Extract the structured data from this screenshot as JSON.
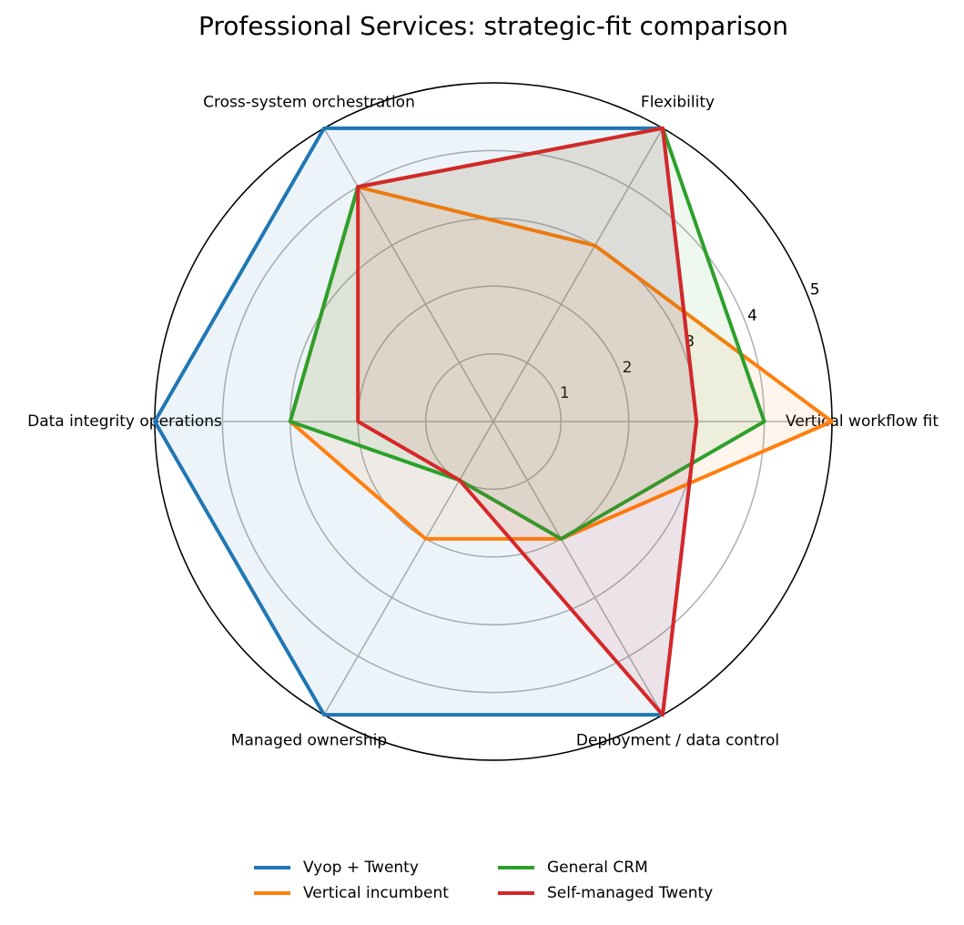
{
  "chart_data": {
    "type": "radar",
    "title": "Professional Services: strategic-fit comparison",
    "categories": [
      "Vertical workflow fit",
      "Flexibility",
      "Cross-system orchestration",
      "Data integrity operations",
      "Managed ownership",
      "Deployment / data control"
    ],
    "series": [
      {
        "name": "Vyop + Twenty",
        "color": "#1f77b4",
        "values": [
          3,
          5,
          5,
          5,
          5,
          5
        ]
      },
      {
        "name": "Vertical incumbent",
        "color": "#ff7f0e",
        "values": [
          5,
          3,
          4,
          3,
          2,
          2
        ]
      },
      {
        "name": "General CRM",
        "color": "#2ca02c",
        "values": [
          4,
          5,
          4,
          3,
          1,
          2
        ]
      },
      {
        "name": "Self-managed Twenty",
        "color": "#d62728",
        "values": [
          3,
          5,
          4,
          2,
          1,
          5
        ]
      }
    ],
    "rlim": [
      0,
      5
    ],
    "rticks": [
      1,
      2,
      3,
      4,
      5
    ],
    "grid": true
  }
}
